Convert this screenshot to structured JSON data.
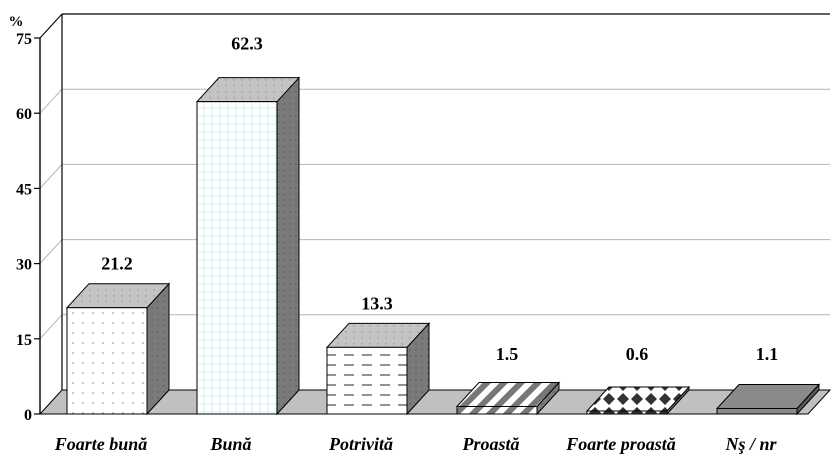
{
  "chart_data": {
    "type": "bar",
    "categories": [
      "Foarte bună",
      "Bună",
      "Potrivită",
      "Proastă",
      "Foarte proastă",
      "Nş / nr"
    ],
    "values": [
      21.2,
      62.3,
      13.3,
      1.5,
      0.6,
      1.1
    ],
    "value_labels": [
      "21.2",
      "62.3",
      "13.3",
      "1.5",
      "0.6",
      "1.1"
    ],
    "ylabel": "%",
    "yticks": [
      "0",
      "15",
      "30",
      "45",
      "60",
      "75"
    ],
    "ylim": [
      0,
      75
    ],
    "grid": true,
    "style": "3d-bar",
    "legend": "none"
  }
}
